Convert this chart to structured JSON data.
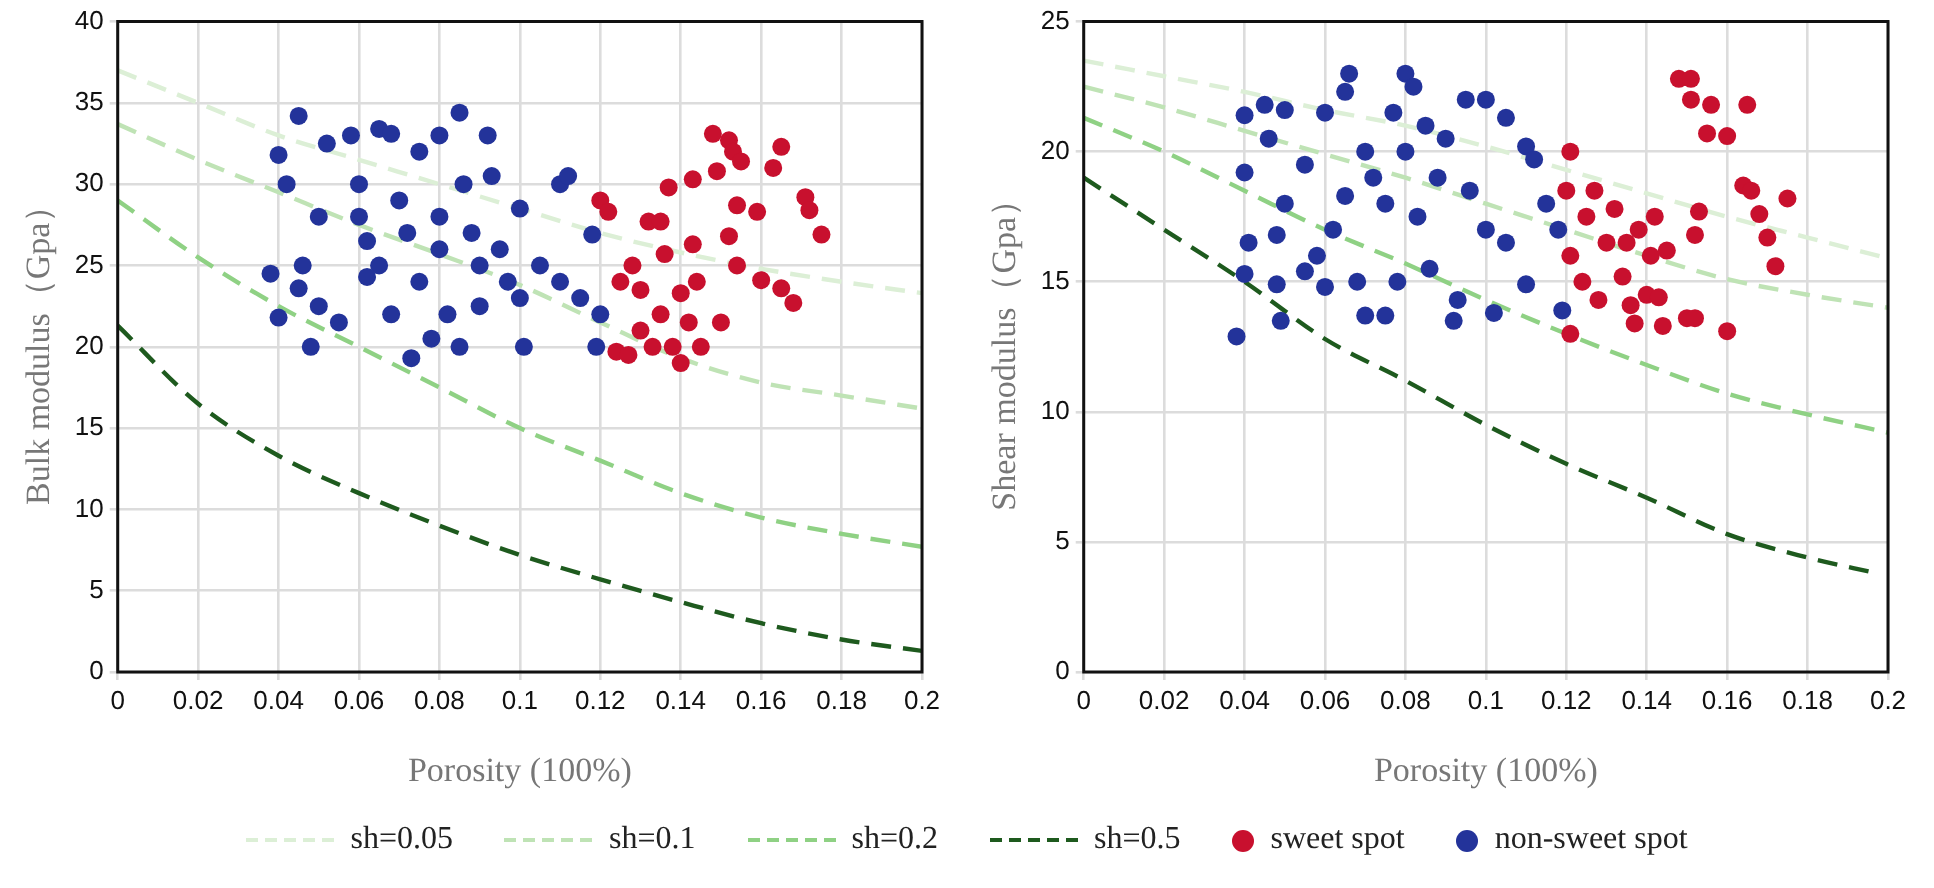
{
  "chart_data": [
    {
      "type": "scatter",
      "xlabel": "Porosity (100%)",
      "ylabel": "Bulk modulus（Gpa）",
      "xlim": [
        0,
        0.2
      ],
      "xticks": [
        0,
        0.02,
        0.04,
        0.06,
        0.08,
        0.1,
        0.12,
        0.14,
        0.16,
        0.18,
        0.2
      ],
      "ylim": [
        0,
        40
      ],
      "yticks": [
        0,
        5,
        10,
        15,
        20,
        25,
        30,
        35,
        40
      ],
      "grid": true,
      "legend": "bottom",
      "series": [
        {
          "name": "sh=0.05",
          "type": "line",
          "line_style": "dashed",
          "color": "#dcefd6",
          "x": [
            0,
            0.02,
            0.04,
            0.06,
            0.08,
            0.1,
            0.12,
            0.14,
            0.16,
            0.18,
            0.2
          ],
          "values": [
            37,
            35,
            33,
            31.5,
            30,
            28.5,
            27,
            25.8,
            24.8,
            24,
            23.3
          ]
        },
        {
          "name": "sh=0.1",
          "type": "line",
          "line_style": "dashed",
          "color": "#bfe3b5",
          "x": [
            0,
            0.02,
            0.04,
            0.06,
            0.08,
            0.1,
            0.12,
            0.14,
            0.16,
            0.18,
            0.2
          ],
          "values": [
            33.7,
            31.5,
            29.5,
            27.5,
            25.7,
            23.8,
            21.5,
            19.3,
            17.8,
            17,
            16.2
          ]
        },
        {
          "name": "sh=0.2",
          "type": "line",
          "line_style": "dashed",
          "color": "#8fd184",
          "x": [
            0,
            0.02,
            0.04,
            0.06,
            0.08,
            0.1,
            0.12,
            0.14,
            0.16,
            0.18,
            0.2
          ],
          "values": [
            29,
            25.5,
            22.5,
            20,
            17.5,
            15,
            13,
            11,
            9.5,
            8.5,
            7.7
          ]
        },
        {
          "name": "sh=0.5",
          "type": "line",
          "line_style": "dashed",
          "color": "#1e5a1e",
          "x": [
            0,
            0.02,
            0.04,
            0.06,
            0.08,
            0.1,
            0.12,
            0.14,
            0.16,
            0.18,
            0.2
          ],
          "values": [
            21.3,
            16.5,
            13.3,
            11,
            9,
            7.2,
            5.7,
            4.3,
            3,
            2,
            1.3
          ]
        },
        {
          "name": "sweet spot",
          "marker": "circle",
          "color": "#c8102e",
          "x": [
            0.12,
            0.122,
            0.125,
            0.124,
            0.128,
            0.13,
            0.13,
            0.132,
            0.135,
            0.136,
            0.137,
            0.135,
            0.138,
            0.14,
            0.14,
            0.143,
            0.143,
            0.144,
            0.145,
            0.142,
            0.148,
            0.149,
            0.15,
            0.152,
            0.153,
            0.154,
            0.154,
            0.155,
            0.159,
            0.16,
            0.163,
            0.165,
            0.165,
            0.168,
            0.171,
            0.172,
            0.175,
            0.152,
            0.127,
            0.133
          ],
          "values": [
            29,
            28.3,
            24,
            19.7,
            25,
            23.5,
            21,
            27.7,
            27.7,
            25.7,
            29.8,
            22,
            20,
            19,
            23.3,
            30.3,
            26.3,
            24,
            20,
            21.5,
            33.1,
            30.8,
            21.5,
            32.7,
            32,
            28.7,
            25,
            31.4,
            28.3,
            24.1,
            31,
            32.3,
            23.6,
            22.7,
            29.2,
            28.4,
            26.9,
            26.8,
            19.5,
            20
          ]
        },
        {
          "name": "non-sweet spot",
          "marker": "circle",
          "color": "#23339a",
          "x": [
            0.045,
            0.04,
            0.042,
            0.038,
            0.04,
            0.045,
            0.046,
            0.048,
            0.05,
            0.055,
            0.05,
            0.052,
            0.058,
            0.065,
            0.068,
            0.06,
            0.06,
            0.062,
            0.065,
            0.07,
            0.072,
            0.075,
            0.073,
            0.075,
            0.08,
            0.08,
            0.08,
            0.082,
            0.085,
            0.085,
            0.086,
            0.088,
            0.09,
            0.09,
            0.092,
            0.093,
            0.095,
            0.097,
            0.1,
            0.1,
            0.101,
            0.105,
            0.11,
            0.112,
            0.11,
            0.115,
            0.12,
            0.119,
            0.118,
            0.068,
            0.062,
            0.078
          ],
          "values": [
            34.2,
            31.8,
            30,
            24.5,
            21.8,
            23.6,
            25,
            20,
            22.5,
            21.5,
            28,
            32.5,
            33,
            33.4,
            33.1,
            30,
            28,
            26.5,
            25,
            29,
            27,
            32,
            19.3,
            24,
            33,
            28,
            26,
            22,
            20,
            34.4,
            30,
            27,
            25,
            22.5,
            33,
            30.5,
            26,
            24,
            28.5,
            23,
            20,
            25,
            30,
            30.5,
            24,
            23,
            22,
            20,
            26.9,
            22,
            24.3,
            20.5
          ]
        }
      ]
    },
    {
      "type": "scatter",
      "xlabel": "Porosity (100%)",
      "ylabel": "Shear modulus（Gpa）",
      "xlim": [
        0,
        0.2
      ],
      "xticks": [
        0,
        0.02,
        0.04,
        0.06,
        0.08,
        0.1,
        0.12,
        0.14,
        0.16,
        0.18,
        0.2
      ],
      "ylim": [
        0,
        25
      ],
      "yticks": [
        0,
        5,
        10,
        15,
        20,
        25
      ],
      "grid": true,
      "legend": "bottom",
      "series": [
        {
          "name": "sh=0.05",
          "type": "line",
          "line_style": "dashed",
          "color": "#dcefd6",
          "x": [
            0,
            0.02,
            0.04,
            0.06,
            0.08,
            0.1,
            0.12,
            0.14,
            0.16,
            0.18,
            0.2
          ],
          "values": [
            23.5,
            22.9,
            22.3,
            21.6,
            21,
            20.2,
            19.3,
            18.4,
            17.5,
            16.7,
            15.9
          ]
        },
        {
          "name": "sh=0.1",
          "type": "line",
          "line_style": "dashed",
          "color": "#bfe3b5",
          "x": [
            0,
            0.02,
            0.04,
            0.06,
            0.08,
            0.1,
            0.12,
            0.14,
            0.16,
            0.18,
            0.2
          ],
          "values": [
            22.5,
            21.7,
            20.8,
            19.9,
            19,
            18,
            17,
            16,
            15.1,
            14.5,
            14
          ]
        },
        {
          "name": "sh=0.2",
          "type": "line",
          "line_style": "dashed",
          "color": "#8fd184",
          "x": [
            0,
            0.02,
            0.04,
            0.06,
            0.08,
            0.1,
            0.12,
            0.14,
            0.16,
            0.18,
            0.2
          ],
          "values": [
            21.3,
            20,
            18.5,
            17,
            15.7,
            14.3,
            13,
            11.8,
            10.7,
            9.9,
            9.2
          ]
        },
        {
          "name": "sh=0.5",
          "type": "line",
          "line_style": "dashed",
          "color": "#1e5a1e",
          "x": [
            0,
            0.02,
            0.04,
            0.06,
            0.08,
            0.1,
            0.12,
            0.14,
            0.16,
            0.18,
            0.197
          ],
          "values": [
            19,
            17,
            15,
            12.8,
            11.2,
            9.5,
            8,
            6.7,
            5.3,
            4.4,
            3.8
          ]
        },
        {
          "name": "sweet spot",
          "marker": "circle",
          "color": "#c8102e",
          "x": [
            0.121,
            0.12,
            0.121,
            0.121,
            0.124,
            0.125,
            0.127,
            0.128,
            0.13,
            0.132,
            0.134,
            0.135,
            0.136,
            0.137,
            0.138,
            0.14,
            0.141,
            0.143,
            0.144,
            0.145,
            0.142,
            0.148,
            0.151,
            0.15,
            0.152,
            0.151,
            0.152,
            0.153,
            0.155,
            0.156,
            0.16,
            0.16,
            0.164,
            0.166,
            0.165,
            0.168,
            0.17,
            0.172,
            0.175
          ],
          "values": [
            20,
            18.5,
            16,
            13,
            15,
            17.5,
            18.5,
            14.3,
            16.5,
            17.8,
            15.2,
            16.5,
            14.1,
            13.4,
            17,
            14.5,
            16,
            14.4,
            13.3,
            16.2,
            17.5,
            22.8,
            22.8,
            13.6,
            13.6,
            22,
            16.8,
            17.7,
            20.7,
            21.8,
            20.6,
            13.1,
            18.7,
            18.5,
            21.8,
            17.6,
            16.7,
            15.6,
            18.2
          ]
        },
        {
          "name": "non-sweet spot",
          "marker": "circle",
          "color": "#23339a",
          "x": [
            0.038,
            0.04,
            0.04,
            0.041,
            0.04,
            0.045,
            0.046,
            0.048,
            0.049,
            0.048,
            0.05,
            0.05,
            0.055,
            0.055,
            0.058,
            0.06,
            0.06,
            0.062,
            0.065,
            0.066,
            0.068,
            0.07,
            0.07,
            0.075,
            0.075,
            0.077,
            0.078,
            0.08,
            0.08,
            0.082,
            0.083,
            0.085,
            0.086,
            0.088,
            0.09,
            0.092,
            0.093,
            0.095,
            0.096,
            0.1,
            0.1,
            0.102,
            0.105,
            0.105,
            0.11,
            0.11,
            0.112,
            0.115,
            0.118,
            0.119,
            0.072,
            0.065
          ],
          "values": [
            12.9,
            21.4,
            19.2,
            16.5,
            15.3,
            21.8,
            20.5,
            14.9,
            13.5,
            16.8,
            21.6,
            18,
            15.4,
            19.5,
            16,
            21.5,
            14.8,
            17,
            22.3,
            23,
            15,
            13.7,
            20,
            13.7,
            18,
            21.5,
            15,
            23,
            20,
            22.5,
            17.5,
            21,
            15.5,
            19,
            20.5,
            13.5,
            14.3,
            22,
            18.5,
            22,
            17,
            13.8,
            21.3,
            16.5,
            20.2,
            14.9,
            19.7,
            18,
            17,
            13.9,
            19,
            18.3
          ]
        }
      ]
    }
  ]
}
